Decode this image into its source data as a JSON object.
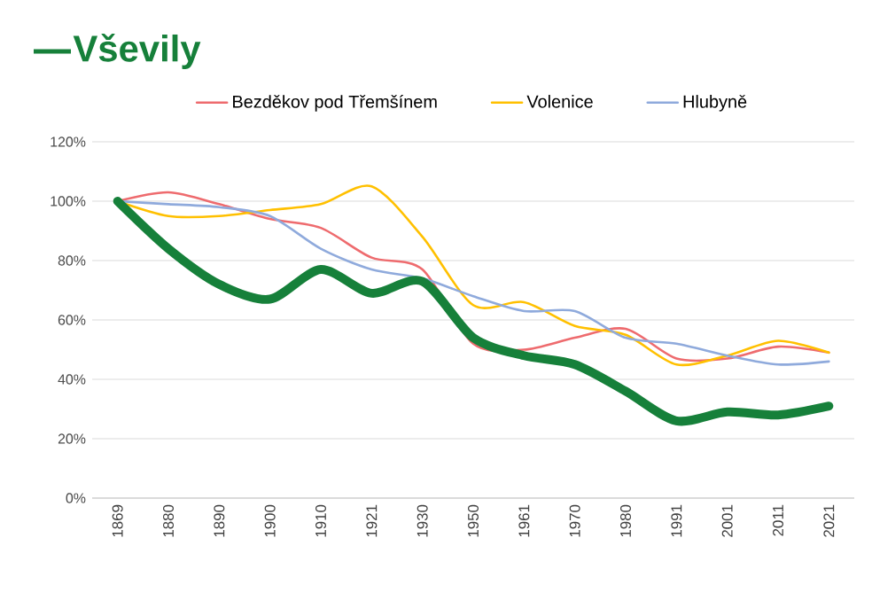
{
  "chart_data": {
    "type": "line",
    "categories": [
      "1869",
      "1880",
      "1890",
      "1900",
      "1910",
      "1921",
      "1930",
      "1950",
      "1961",
      "1970",
      "1980",
      "1991",
      "2001",
      "2011",
      "2021"
    ],
    "series": [
      {
        "name": "Vševily",
        "color": "#16803a",
        "values": [
          100,
          84,
          72,
          67,
          77,
          69,
          73,
          54,
          48,
          45,
          36,
          26,
          29,
          28,
          31
        ]
      },
      {
        "name": "Bezděkov pod Třemšínem",
        "color": "#ee6b6e",
        "values": [
          100,
          103,
          99,
          94,
          91,
          81,
          77,
          52,
          50,
          54,
          57,
          47,
          47,
          51,
          49
        ]
      },
      {
        "name": "Volenice",
        "color": "#ffc000",
        "values": [
          100,
          95,
          95,
          97,
          99,
          105,
          88,
          65,
          66,
          58,
          55,
          45,
          48,
          53,
          49
        ]
      },
      {
        "name": "Hlubyně",
        "color": "#8faadc",
        "values": [
          100,
          99,
          98,
          95,
          84,
          77,
          74,
          68,
          63,
          63,
          54,
          52,
          48,
          45,
          46
        ]
      }
    ],
    "ylim": [
      0,
      120
    ],
    "yticks": [
      {
        "value": 0,
        "label": "0%"
      },
      {
        "value": 20,
        "label": "20%"
      },
      {
        "value": 40,
        "label": "40%"
      },
      {
        "value": 60,
        "label": "60%"
      },
      {
        "value": 80,
        "label": "80%"
      },
      {
        "value": 100,
        "label": "100%"
      },
      {
        "value": 120,
        "label": "120%"
      }
    ],
    "grid": "y",
    "legend": "top",
    "marker": "none",
    "line_style": "solid"
  }
}
